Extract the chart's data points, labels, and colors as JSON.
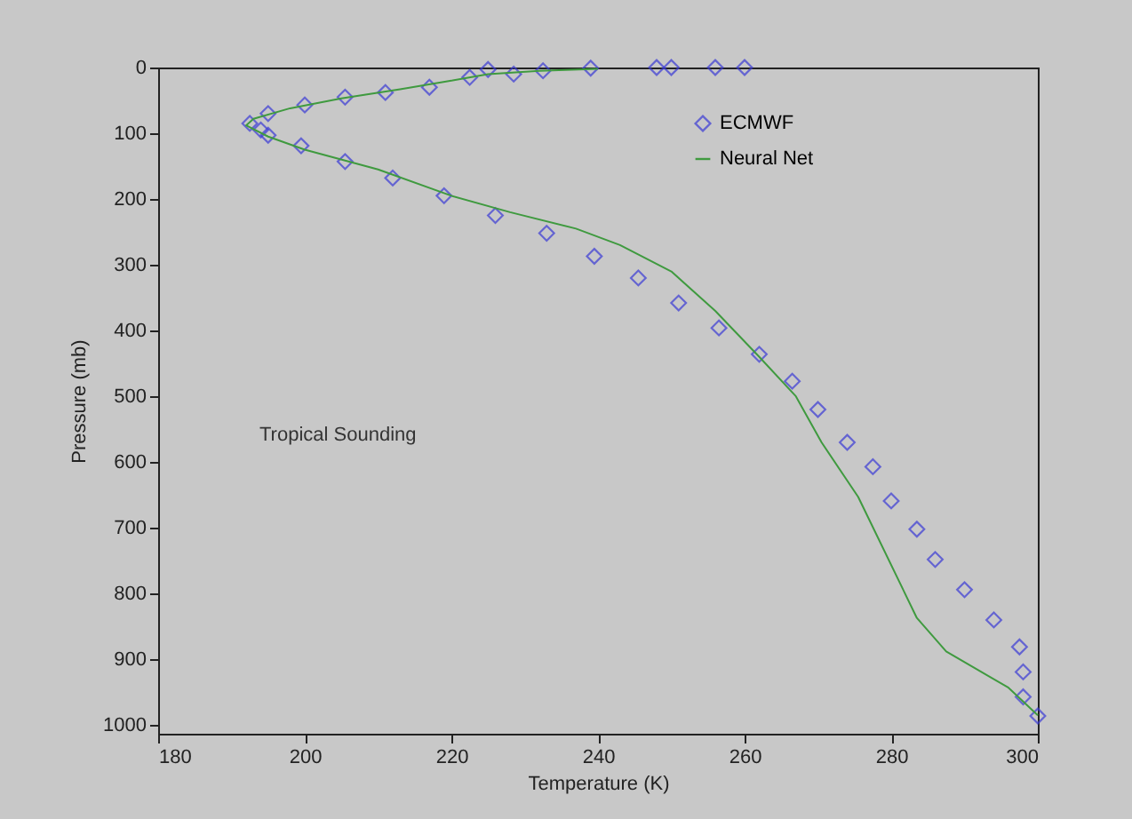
{
  "chart_data": {
    "type": "scatter",
    "xlabel": "Temperature (K)",
    "ylabel": "Pressure (mb)",
    "annotations": [
      "Tropical Sounding"
    ],
    "xlim": [
      180,
      300
    ],
    "xticks": [
      180,
      200,
      220,
      240,
      260,
      280,
      300
    ],
    "ylim": [
      1013,
      0
    ],
    "yticks": [
      0,
      100,
      200,
      300,
      400,
      500,
      600,
      700,
      800,
      900,
      1000
    ],
    "grid": false,
    "legend": "top right",
    "series": [
      {
        "name": "ECMWF",
        "type": "scatter",
        "marker": "diamond",
        "color": "#3b3bd6",
        "x": [
          260,
          256,
          250,
          248,
          239,
          232.5,
          228.5,
          225,
          222.5,
          217,
          211,
          205.5,
          200,
          195,
          192.5,
          194,
          195,
          199.5,
          205.5,
          212,
          219,
          226,
          233,
          239.5,
          245.5,
          251,
          256.5,
          262,
          266.5,
          270,
          274,
          277.5,
          280,
          283.5,
          286,
          290,
          294,
          297.5,
          298,
          298,
          300
        ],
        "values": [
          0,
          0,
          0,
          0,
          1,
          5,
          10,
          3,
          15,
          30,
          38,
          45,
          57,
          70,
          85,
          95,
          103,
          119,
          143,
          168,
          195,
          225,
          252,
          287,
          320,
          358,
          396,
          436,
          477,
          520,
          570,
          607,
          659,
          702,
          748,
          794,
          840,
          881,
          919,
          957,
          986
        ]
      },
      {
        "name": "Neural Net",
        "type": "line",
        "color": "#3f9a3f",
        "line_style": "solid",
        "x": [
          240,
          232,
          225,
          220,
          213,
          205,
          198,
          193,
          192,
          195,
          200,
          210,
          220,
          228,
          237,
          243,
          250,
          256,
          262,
          267,
          270.5,
          275.5,
          283.5,
          287.5,
          296,
          300
        ],
        "values": [
          2,
          5,
          10,
          20,
          33,
          47,
          62,
          78,
          88,
          105,
          125,
          155,
          195,
          220,
          245,
          270,
          310,
          370,
          440,
          500,
          570,
          653,
          837,
          888,
          943,
          985
        ]
      }
    ]
  }
}
